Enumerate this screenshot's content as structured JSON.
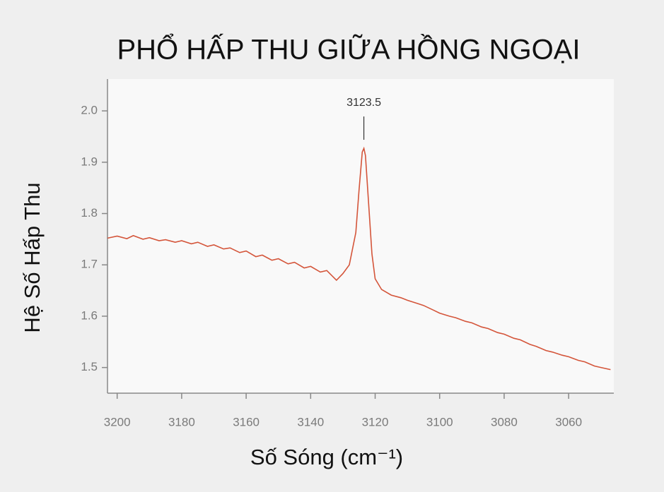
{
  "chart_data": {
    "type": "line",
    "title": "PHỔ HẤP THU GIỮA HỒNG NGOẠI",
    "x_label": "Số Sóng (cm⁻¹)",
    "y_label": "Hệ Số Hấp Thu",
    "x": [
      3203,
      3200,
      3197,
      3195,
      3192,
      3190,
      3187,
      3185,
      3182,
      3180,
      3177,
      3175,
      3172,
      3170,
      3167,
      3165,
      3162,
      3160,
      3157,
      3155,
      3152,
      3150,
      3147,
      3145,
      3142,
      3140,
      3137,
      3135,
      3132,
      3130,
      3128,
      3126,
      3125,
      3124,
      3123.5,
      3123,
      3122,
      3121,
      3120,
      3118,
      3115,
      3112,
      3110,
      3107,
      3105,
      3102,
      3100,
      3097,
      3095,
      3092,
      3090,
      3087,
      3085,
      3082,
      3080,
      3077,
      3075,
      3072,
      3070,
      3067,
      3065,
      3062,
      3060,
      3057,
      3055,
      3052,
      3050,
      3047
    ],
    "series": [
      {
        "name": "Hệ Số Hấp Thu",
        "color": "#d4553a",
        "values": [
          1.752,
          1.756,
          1.751,
          1.757,
          1.75,
          1.753,
          1.747,
          1.749,
          1.744,
          1.747,
          1.741,
          1.744,
          1.736,
          1.739,
          1.731,
          1.733,
          1.724,
          1.727,
          1.716,
          1.719,
          1.709,
          1.712,
          1.702,
          1.705,
          1.694,
          1.697,
          1.686,
          1.689,
          1.67,
          1.683,
          1.7,
          1.763,
          1.845,
          1.92,
          1.927,
          1.913,
          1.817,
          1.721,
          1.673,
          1.652,
          1.641,
          1.636,
          1.631,
          1.625,
          1.621,
          1.612,
          1.606,
          1.6,
          1.597,
          1.59,
          1.587,
          1.579,
          1.576,
          1.568,
          1.565,
          1.557,
          1.554,
          1.545,
          1.541,
          1.533,
          1.53,
          1.524,
          1.521,
          1.514,
          1.511,
          1.503,
          1.5,
          1.496
        ]
      }
    ],
    "peak_label": {
      "text": "3123.5",
      "x": 3123.5
    },
    "xlim": [
      3203,
      3046
    ],
    "xticks": [
      3200,
      3180,
      3160,
      3140,
      3120,
      3100,
      3080,
      3060
    ],
    "ylim": [
      1.45,
      2.062
    ],
    "yticks": [
      {
        "value": 2,
        "label": "2.0"
      },
      1.9,
      1.8,
      1.7,
      1.6,
      1.5
    ]
  }
}
